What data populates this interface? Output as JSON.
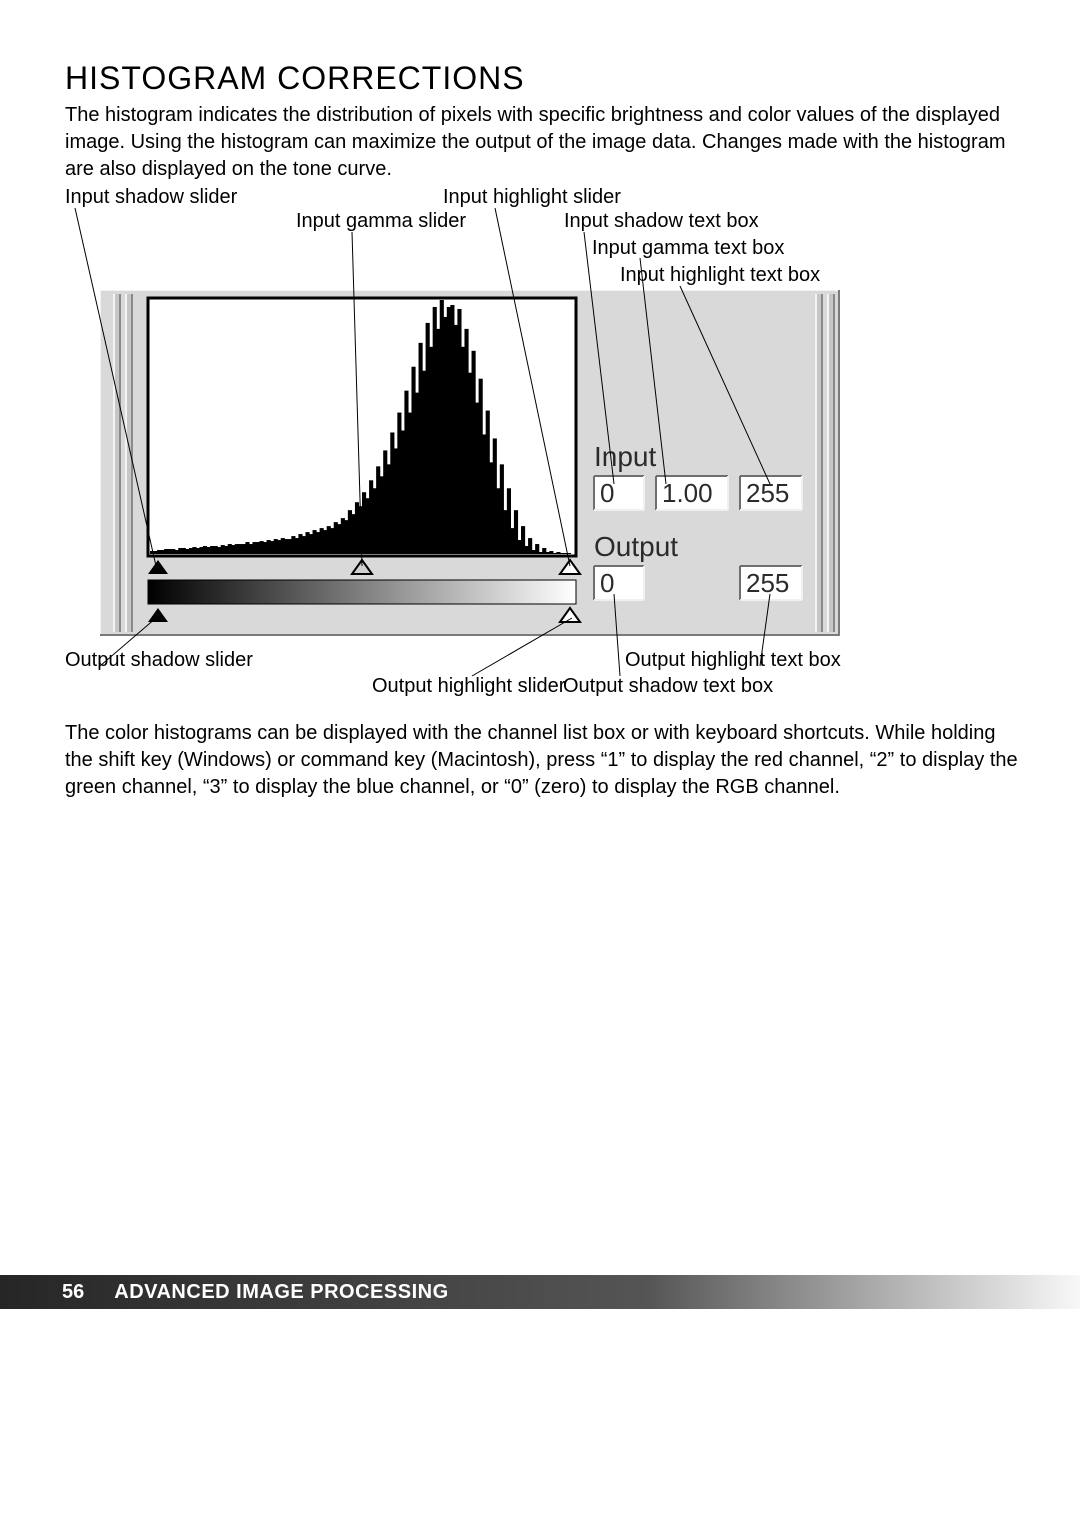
{
  "title": "HISTOGRAM CORRECTIONS",
  "paragraph1": "The histogram indicates the distribution of pixels with specific brightness and color values of the displayed image. Using the histogram can maximize the output of the image data. Changes made with the histogram are also displayed on the tone curve.",
  "paragraph2": "The color histograms can be displayed with the channel list box or with keyboard shortcuts. While holding the shift key (Windows) or command key (Macintosh), press “1” to display the red channel, “2” to display the green channel, “3” to display the blue channel, or “0” (zero) to display the RGB channel.",
  "callouts": {
    "input_shadow_slider": "Input shadow slider",
    "input_gamma_slider": "Input gamma slider",
    "input_highlight_slider": "Input highlight slider",
    "input_shadow_text": "Input shadow text box",
    "input_gamma_text": "Input gamma text box",
    "input_highlight_text": "Input highlight text box",
    "output_shadow_slider": "Output shadow slider",
    "output_highlight_slider": "Output highlight slider",
    "output_shadow_text": "Output shadow text box",
    "output_highlight_text": "Output highlight text box"
  },
  "ui_labels": {
    "input": "Input",
    "output": "Output"
  },
  "text_boxes": {
    "input_shadow": "0",
    "input_gamma": "1.00",
    "input_highlight": "255",
    "output_shadow": "0",
    "output_highlight": "255"
  },
  "footer": {
    "page": "56",
    "section": "ADVANCED IMAGE PROCESSING"
  },
  "diagram": {
    "type": "screenshot-histogram",
    "panel_bg": "#d9d9d9",
    "panel_border_light": "#f2f2f2",
    "panel_border_dark": "#7a7a7a",
    "histogram_bg": "#ffffff",
    "histogram_border": "#000000",
    "histogram_fill": "#000000",
    "textbox_bg": "#ffffff",
    "textbox_border_dark": "#6e6e6e",
    "textbox_border_light": "#f0f0f0",
    "gradient_start": "#000000",
    "gradient_end": "#ffffff",
    "slider_black_fill": "#000000",
    "slider_white_fill": "#ffffff",
    "ui_text_color": "#2b2b2b",
    "ui_font_size_pt": 22,
    "histogram_values": [
      3,
      3,
      4,
      4,
      5,
      5,
      5,
      4,
      6,
      6,
      5,
      6,
      7,
      6,
      7,
      8,
      7,
      8,
      8,
      7,
      9,
      8,
      10,
      9,
      10,
      10,
      10,
      12,
      10,
      12,
      12,
      13,
      12,
      14,
      13,
      15,
      14,
      16,
      15,
      15,
      18,
      16,
      20,
      18,
      22,
      20,
      24,
      22,
      26,
      24,
      28,
      26,
      32,
      30,
      36,
      34,
      44,
      40,
      52,
      48,
      62,
      56,
      74,
      66,
      88,
      78,
      104,
      90,
      122,
      106,
      142,
      124,
      164,
      142,
      188,
      162,
      212,
      184,
      232,
      208,
      248,
      226,
      255,
      238,
      248,
      250,
      230,
      246,
      208,
      226,
      182,
      204,
      152,
      176,
      120,
      144,
      92,
      116,
      66,
      90,
      44,
      66,
      26,
      44,
      14,
      28,
      8,
      16,
      4,
      10,
      2,
      6,
      2,
      3,
      1,
      2,
      1,
      1,
      1,
      0
    ],
    "input_slider_positions": {
      "shadow": 0.0,
      "gamma": 0.5,
      "highlight": 1.0
    },
    "output_slider_positions": {
      "shadow": 0.0,
      "highlight": 1.0
    }
  }
}
